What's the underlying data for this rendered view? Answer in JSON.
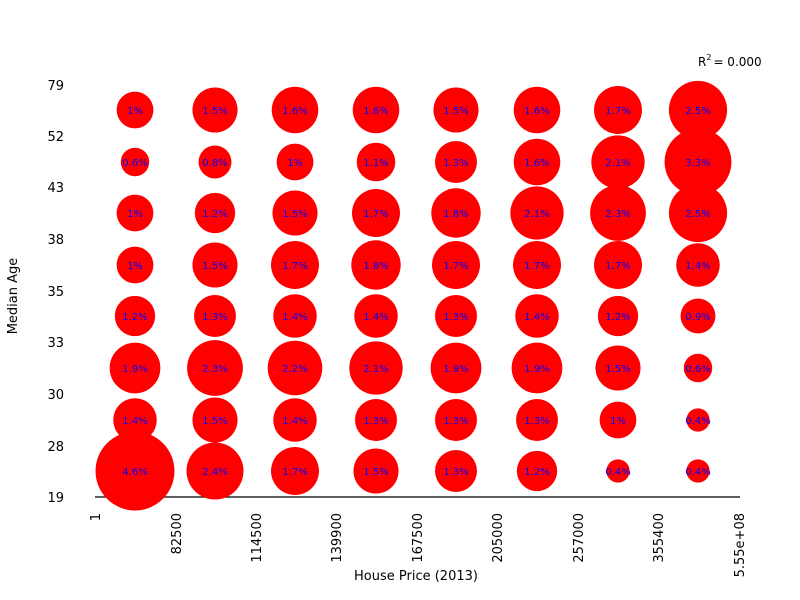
{
  "chart_data": {
    "type": "scatter",
    "subtype": "bubble",
    "xlabel": "House Price (2013)",
    "ylabel": "Median Age",
    "x_tick_labels": [
      "1",
      "82500",
      "114500",
      "139900",
      "167500",
      "205000",
      "257000",
      "355400",
      "5.55e+08"
    ],
    "y_tick_labels": [
      "19",
      "28",
      "30",
      "33",
      "35",
      "38",
      "43",
      "52",
      "79"
    ],
    "annotation": {
      "r2_prefix": "R",
      "r2_sup": "2",
      "r2_value": "= 0.000"
    },
    "colors": {
      "bubble": "#ff0000",
      "label": "#0000ff",
      "axis": "#000000"
    },
    "rows": [
      {
        "values": [
          4.6,
          2.4,
          1.7,
          1.5,
          1.3,
          1.2,
          0.4,
          0.4
        ],
        "labels": [
          "4.6%",
          "2.4%",
          "1.7%",
          "1.5%",
          "1.3%",
          "1.2%",
          "0.4%",
          "0.4%"
        ]
      },
      {
        "values": [
          1.4,
          1.5,
          1.4,
          1.3,
          1.3,
          1.3,
          1.0,
          0.4
        ],
        "labels": [
          "1.4%",
          "1.5%",
          "1.4%",
          "1.3%",
          "1.3%",
          "1.3%",
          "1%",
          "0.4%"
        ]
      },
      {
        "values": [
          1.9,
          2.3,
          2.2,
          2.1,
          1.9,
          1.9,
          1.5,
          0.6
        ],
        "labels": [
          "1.9%",
          "2.3%",
          "2.2%",
          "2.1%",
          "1.9%",
          "1.9%",
          "1.5%",
          "0.6%"
        ]
      },
      {
        "values": [
          1.2,
          1.3,
          1.4,
          1.4,
          1.3,
          1.4,
          1.2,
          0.9
        ],
        "labels": [
          "1.2%",
          "1.3%",
          "1.4%",
          "1.4%",
          "1.3%",
          "1.4%",
          "1.2%",
          "0.9%"
        ]
      },
      {
        "values": [
          1.0,
          1.5,
          1.7,
          1.8,
          1.7,
          1.7,
          1.7,
          1.4
        ],
        "labels": [
          "1%",
          "1.5%",
          "1.7%",
          "1.8%",
          "1.7%",
          "1.7%",
          "1.7%",
          "1.4%"
        ]
      },
      {
        "values": [
          1.0,
          1.2,
          1.5,
          1.7,
          1.8,
          2.1,
          2.3,
          2.5
        ],
        "labels": [
          "1%",
          "1.2%",
          "1.5%",
          "1.7%",
          "1.8%",
          "2.1%",
          "2.3%",
          "2.5%"
        ]
      },
      {
        "values": [
          0.6,
          0.8,
          1.0,
          1.1,
          1.3,
          1.6,
          2.1,
          3.3
        ],
        "labels": [
          "0.6%",
          "0.8%",
          "1%",
          "1.1%",
          "1.3%",
          "1.6%",
          "2.1%",
          "3.3%"
        ]
      },
      {
        "values": [
          1.0,
          1.5,
          1.6,
          1.6,
          1.5,
          1.6,
          1.7,
          2.5
        ],
        "labels": [
          "1%",
          "1.5%",
          "1.6%",
          "1.6%",
          "1.5%",
          "1.6%",
          "1.7%",
          "2.5%"
        ]
      }
    ],
    "grid": false,
    "legend": "none"
  }
}
